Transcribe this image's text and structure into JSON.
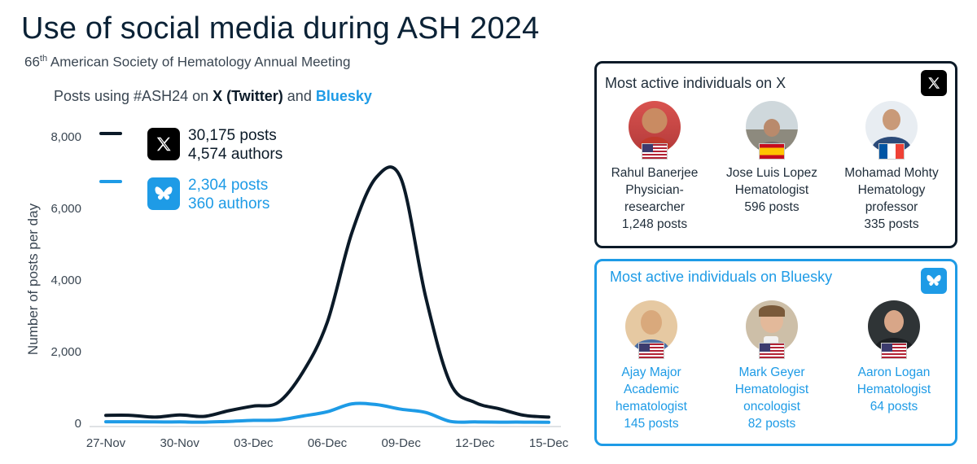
{
  "header": {
    "title": "Use of social media during ASH 2024",
    "subtitle_ordinal": "66",
    "subtitle_suffix": "th",
    "subtitle_rest": " American Society of Hematology Annual Meeting"
  },
  "chart_heading": {
    "prefix": "Posts using #ASH24 on ",
    "x_name": "X (Twitter)",
    "middle": " and ",
    "bs_name": "Bluesky"
  },
  "legend": {
    "x": {
      "posts": "30,175 posts",
      "authors": "4,574 authors",
      "color": "#0b1a28",
      "icon": "x-logo-icon"
    },
    "bluesky": {
      "posts": "2,304 posts",
      "authors": "360 authors",
      "color": "#1e9be6",
      "icon": "bluesky-butterfly-icon"
    }
  },
  "chart_data": {
    "type": "line",
    "title": "",
    "xlabel": "",
    "ylabel": "Number of posts per day",
    "ylim": [
      0,
      8000
    ],
    "yticks": [
      0,
      2000,
      4000,
      6000,
      8000
    ],
    "ytick_labels": [
      "0",
      "2,000",
      "4,000",
      "6,000",
      "8,000"
    ],
    "x": [
      "27-Nov",
      "28-Nov",
      "29-Nov",
      "30-Nov",
      "01-Dec",
      "02-Dec",
      "03-Dec",
      "04-Dec",
      "05-Dec",
      "06-Dec",
      "07-Dec",
      "08-Dec",
      "09-Dec",
      "10-Dec",
      "11-Dec",
      "12-Dec",
      "13-Dec",
      "14-Dec",
      "15-Dec"
    ],
    "xtick_labels": [
      "27-Nov",
      "30-Nov",
      "03-Dec",
      "06-Dec",
      "09-Dec",
      "12-Dec",
      "15-Dec"
    ],
    "series": [
      {
        "name": "X",
        "color": "#0b1a28",
        "values": [
          200,
          200,
          150,
          210,
          170,
          330,
          460,
          560,
          1400,
          2800,
          5300,
          6850,
          6800,
          3500,
          1100,
          560,
          380,
          200,
          150
        ]
      },
      {
        "name": "Bluesky",
        "color": "#1e9be6",
        "values": [
          20,
          20,
          15,
          15,
          10,
          30,
          60,
          70,
          180,
          300,
          520,
          500,
          370,
          280,
          30,
          15,
          10,
          10,
          5
        ]
      }
    ],
    "grid": false,
    "legend": "top-left"
  },
  "panel_x": {
    "title": "Most active individuals on X",
    "people": [
      {
        "lines": [
          "Rahul Banerjee",
          "Physician-",
          "researcher",
          "1,248 posts"
        ],
        "flag": "US"
      },
      {
        "lines": [
          "Jose Luis Lopez",
          "Hematologist",
          "596 posts"
        ],
        "flag": "ES"
      },
      {
        "lines": [
          "Mohamad Mohty",
          "Hematology",
          "professor",
          "335 posts"
        ],
        "flag": "FR"
      }
    ]
  },
  "panel_bs": {
    "title": "Most active individuals on Bluesky",
    "people": [
      {
        "lines": [
          "Ajay Major",
          "Academic",
          "hematologist",
          "145 posts"
        ],
        "flag": "US"
      },
      {
        "lines": [
          "Mark Geyer",
          "Hematologist",
          "oncologist",
          "82 posts"
        ],
        "flag": "US"
      },
      {
        "lines": [
          "Aaron Logan",
          "Hematologist",
          "64 posts"
        ],
        "flag": "US"
      }
    ]
  }
}
